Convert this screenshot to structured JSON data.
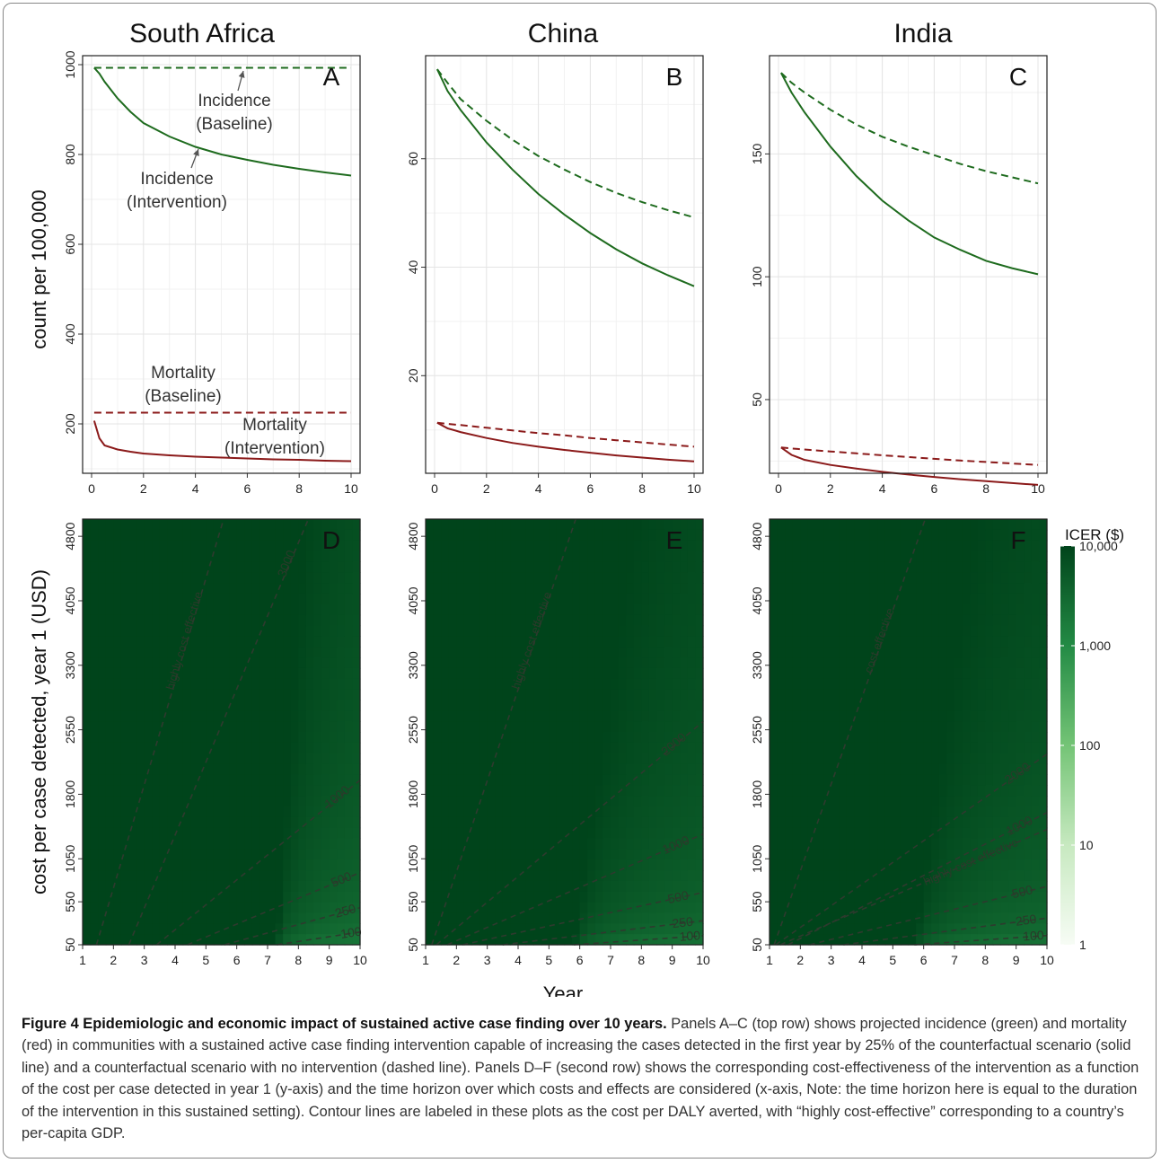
{
  "figure": {
    "titles": [
      "South Africa",
      "China",
      "India"
    ],
    "x_title": "Year",
    "caption_bold": "Figure 4 Epidemiologic and economic impact of sustained active case finding over 10 years.",
    "caption_rest": " Panels A–C (top row) shows projected incidence (green) and mortality (red) in communities with a sustained active case finding intervention capable of increasing the cases detected in the first year by 25% of the counterfactual scenario (solid line) and a counterfactual scenario with no intervention (dashed line). Panels D–F (second row) shows the corresponding cost-effectiveness of the intervention as a function of the cost per case detected in year 1 (y-axis) and the time horizon over which costs and effects are considered (x-axis, Note: the time horizon here is equal to the duration of the intervention in this sustained setting). Contour lines are labeled in these plots as the cost per DALY averted, with “highly cost-effective” corresponding to a country’s per-capita GDP."
  },
  "chart_data": [
    {
      "panel": "A",
      "type": "line",
      "country": "South Africa",
      "ylabel": "count per 100,000",
      "xlim": [
        0,
        10
      ],
      "ylim": [
        90,
        1020
      ],
      "x_ticks": [
        0,
        2,
        4,
        6,
        8,
        10
      ],
      "y_ticks": [
        200,
        400,
        600,
        800,
        1000
      ],
      "x": [
        0.1,
        0.3,
        0.5,
        1,
        1.5,
        2,
        3,
        4,
        5,
        6,
        7,
        8,
        9,
        10
      ],
      "series": [
        {
          "style": "dashed",
          "color": "#1e6b1e",
          "values": [
            993,
            993,
            993,
            993,
            993,
            993,
            993,
            993,
            993,
            993,
            993,
            993,
            993,
            993
          ]
        },
        {
          "style": "solid",
          "color": "#1e6b1e",
          "values": [
            993,
            980,
            962,
            925,
            895,
            870,
            840,
            817,
            800,
            788,
            777,
            768,
            760,
            753
          ]
        },
        {
          "style": "dashed",
          "color": "#8b1a1a",
          "values": [
            225,
            225,
            225,
            225,
            225,
            225,
            225,
            225,
            225,
            225,
            225,
            225,
            225,
            225
          ]
        },
        {
          "style": "solid",
          "color": "#8b1a1a",
          "values": [
            207,
            168,
            152,
            143,
            138,
            134,
            130,
            127,
            125,
            123,
            121,
            120,
            118,
            117
          ]
        }
      ],
      "annotations": [
        {
          "text": [
            "Incidence",
            "(Baseline)"
          ]
        },
        {
          "text": [
            "Incidence",
            "(Intervention)"
          ]
        },
        {
          "text": [
            "Mortality",
            "(Baseline)"
          ]
        },
        {
          "text": [
            "Mortality",
            "(Intervention)"
          ]
        }
      ]
    },
    {
      "panel": "B",
      "type": "line",
      "country": "China",
      "xlim": [
        0,
        10
      ],
      "ylim": [
        2,
        79
      ],
      "x_ticks": [
        0,
        2,
        4,
        6,
        8,
        10
      ],
      "y_ticks": [
        20,
        40,
        60
      ],
      "x": [
        0.1,
        0.5,
        1,
        2,
        3,
        4,
        5,
        6,
        7,
        8,
        9,
        10
      ],
      "series": [
        {
          "style": "dashed",
          "color": "#1e6b1e",
          "values": [
            76.5,
            74,
            71,
            67,
            63.5,
            60.5,
            58,
            55.7,
            53.7,
            52,
            50.5,
            49.2
          ]
        },
        {
          "style": "solid",
          "color": "#1e6b1e",
          "values": [
            76.5,
            72.5,
            69,
            63,
            58,
            53.5,
            49.7,
            46.3,
            43.3,
            40.7,
            38.5,
            36.5
          ]
        },
        {
          "style": "dashed",
          "color": "#8b1a1a",
          "values": [
            11.3,
            11.1,
            10.9,
            10.4,
            9.9,
            9.4,
            9,
            8.5,
            8.1,
            7.7,
            7.3,
            6.9
          ]
        },
        {
          "style": "solid",
          "color": "#8b1a1a",
          "values": [
            11.3,
            10.3,
            9.6,
            8.5,
            7.6,
            6.9,
            6.3,
            5.8,
            5.3,
            4.9,
            4.5,
            4.2
          ]
        }
      ]
    },
    {
      "panel": "C",
      "type": "line",
      "country": "India",
      "xlim": [
        0,
        10
      ],
      "ylim": [
        20,
        190
      ],
      "x_ticks": [
        0,
        2,
        4,
        6,
        8,
        10
      ],
      "y_ticks": [
        50,
        100,
        150
      ],
      "x": [
        0.1,
        0.5,
        1,
        2,
        3,
        4,
        5,
        6,
        7,
        8,
        9,
        10
      ],
      "series": [
        {
          "style": "dashed",
          "color": "#1e6b1e",
          "values": [
            183,
            179,
            175,
            168,
            162,
            157,
            153,
            149.5,
            146,
            143,
            140.5,
            138
          ]
        },
        {
          "style": "solid",
          "color": "#1e6b1e",
          "values": [
            183,
            175,
            167,
            153,
            141,
            131,
            123,
            116,
            111,
            106.5,
            103.5,
            101
          ]
        },
        {
          "style": "dashed",
          "color": "#8b1a1a",
          "values": [
            30.5,
            30.1,
            29.7,
            28.9,
            28.1,
            27.3,
            26.6,
            25.9,
            25.2,
            24.6,
            24,
            23.4
          ]
        },
        {
          "style": "solid",
          "color": "#8b1a1a",
          "values": [
            30.5,
            27.5,
            25.5,
            23.4,
            21.9,
            20.6,
            19.5,
            18.5,
            17.6,
            16.8,
            16,
            15.3
          ]
        }
      ]
    },
    {
      "panel": "D",
      "type": "heatmap",
      "country": "South Africa",
      "ylabel": "cost per case detected, year 1 (USD)",
      "xlim": [
        1,
        10
      ],
      "ylim": [
        50,
        5000
      ],
      "x_ticks": [
        1,
        2,
        3,
        4,
        5,
        6,
        7,
        8,
        9,
        10
      ],
      "y_ticks": [
        50,
        550,
        1050,
        1800,
        2550,
        3300,
        4050,
        4800
      ],
      "contours": [
        {
          "label": "highly cost effective",
          "x0": 1.45,
          "slope": 1200
        },
        {
          "label": "3000",
          "x0": 2.5,
          "slope": 850
        },
        {
          "label": "1000",
          "x0": 3.4,
          "slope": 290
        },
        {
          "label": "500",
          "x0": 4.4,
          "slope": 150
        },
        {
          "label": "250",
          "x0": 5.6,
          "slope": 98
        },
        {
          "label": "100",
          "x0": 7.3,
          "slope": 55
        }
      ]
    },
    {
      "panel": "E",
      "type": "heatmap",
      "country": "China",
      "xlim": [
        1,
        10
      ],
      "ylim": [
        50,
        5000
      ],
      "x_ticks": [
        1,
        2,
        3,
        4,
        5,
        6,
        7,
        8,
        9,
        10
      ],
      "y_ticks": [
        50,
        550,
        1050,
        1800,
        2550,
        3300,
        4050,
        4800
      ],
      "contours": [
        {
          "label": "highly cost effective",
          "x0": 1.2,
          "slope": 1060
        },
        {
          "label": "2000",
          "x0": 1.35,
          "slope": 300
        },
        {
          "label": "1000",
          "x0": 1.7,
          "slope": 155
        },
        {
          "label": "500",
          "x0": 2.2,
          "slope": 78
        },
        {
          "label": "250",
          "x0": 3.5,
          "slope": 43
        },
        {
          "label": "100",
          "x0": 5.8,
          "slope": 25
        }
      ]
    },
    {
      "panel": "F",
      "type": "heatmap",
      "country": "India",
      "xlim": [
        1,
        10
      ],
      "ylim": [
        50,
        5000
      ],
      "x_ticks": [
        1,
        2,
        3,
        4,
        5,
        6,
        7,
        8,
        9,
        10
      ],
      "y_ticks": [
        50,
        550,
        1050,
        1800,
        2550,
        3300,
        4050,
        4800
      ],
      "contours": [
        {
          "label": "highly cost effective",
          "x0": 1.35,
          "slope": 155
        },
        {
          "label": "cost effective",
          "x0": 1.15,
          "slope": 1010
        },
        {
          "label": "2000",
          "x0": 1.2,
          "slope": 252
        },
        {
          "label": "1000",
          "x0": 1.6,
          "slope": 183
        },
        {
          "label": "500",
          "x0": 2.3,
          "slope": 88
        },
        {
          "label": "250",
          "x0": 3.4,
          "slope": 47
        },
        {
          "label": "100",
          "x0": 5.7,
          "slope": 25
        }
      ]
    }
  ],
  "legend": {
    "title": "ICER ($)",
    "scale": "log",
    "ticks": [
      "10,000",
      "1,000",
      "100",
      "10",
      "1"
    ],
    "colors": [
      "#07421d",
      "#f7fcf5"
    ]
  }
}
